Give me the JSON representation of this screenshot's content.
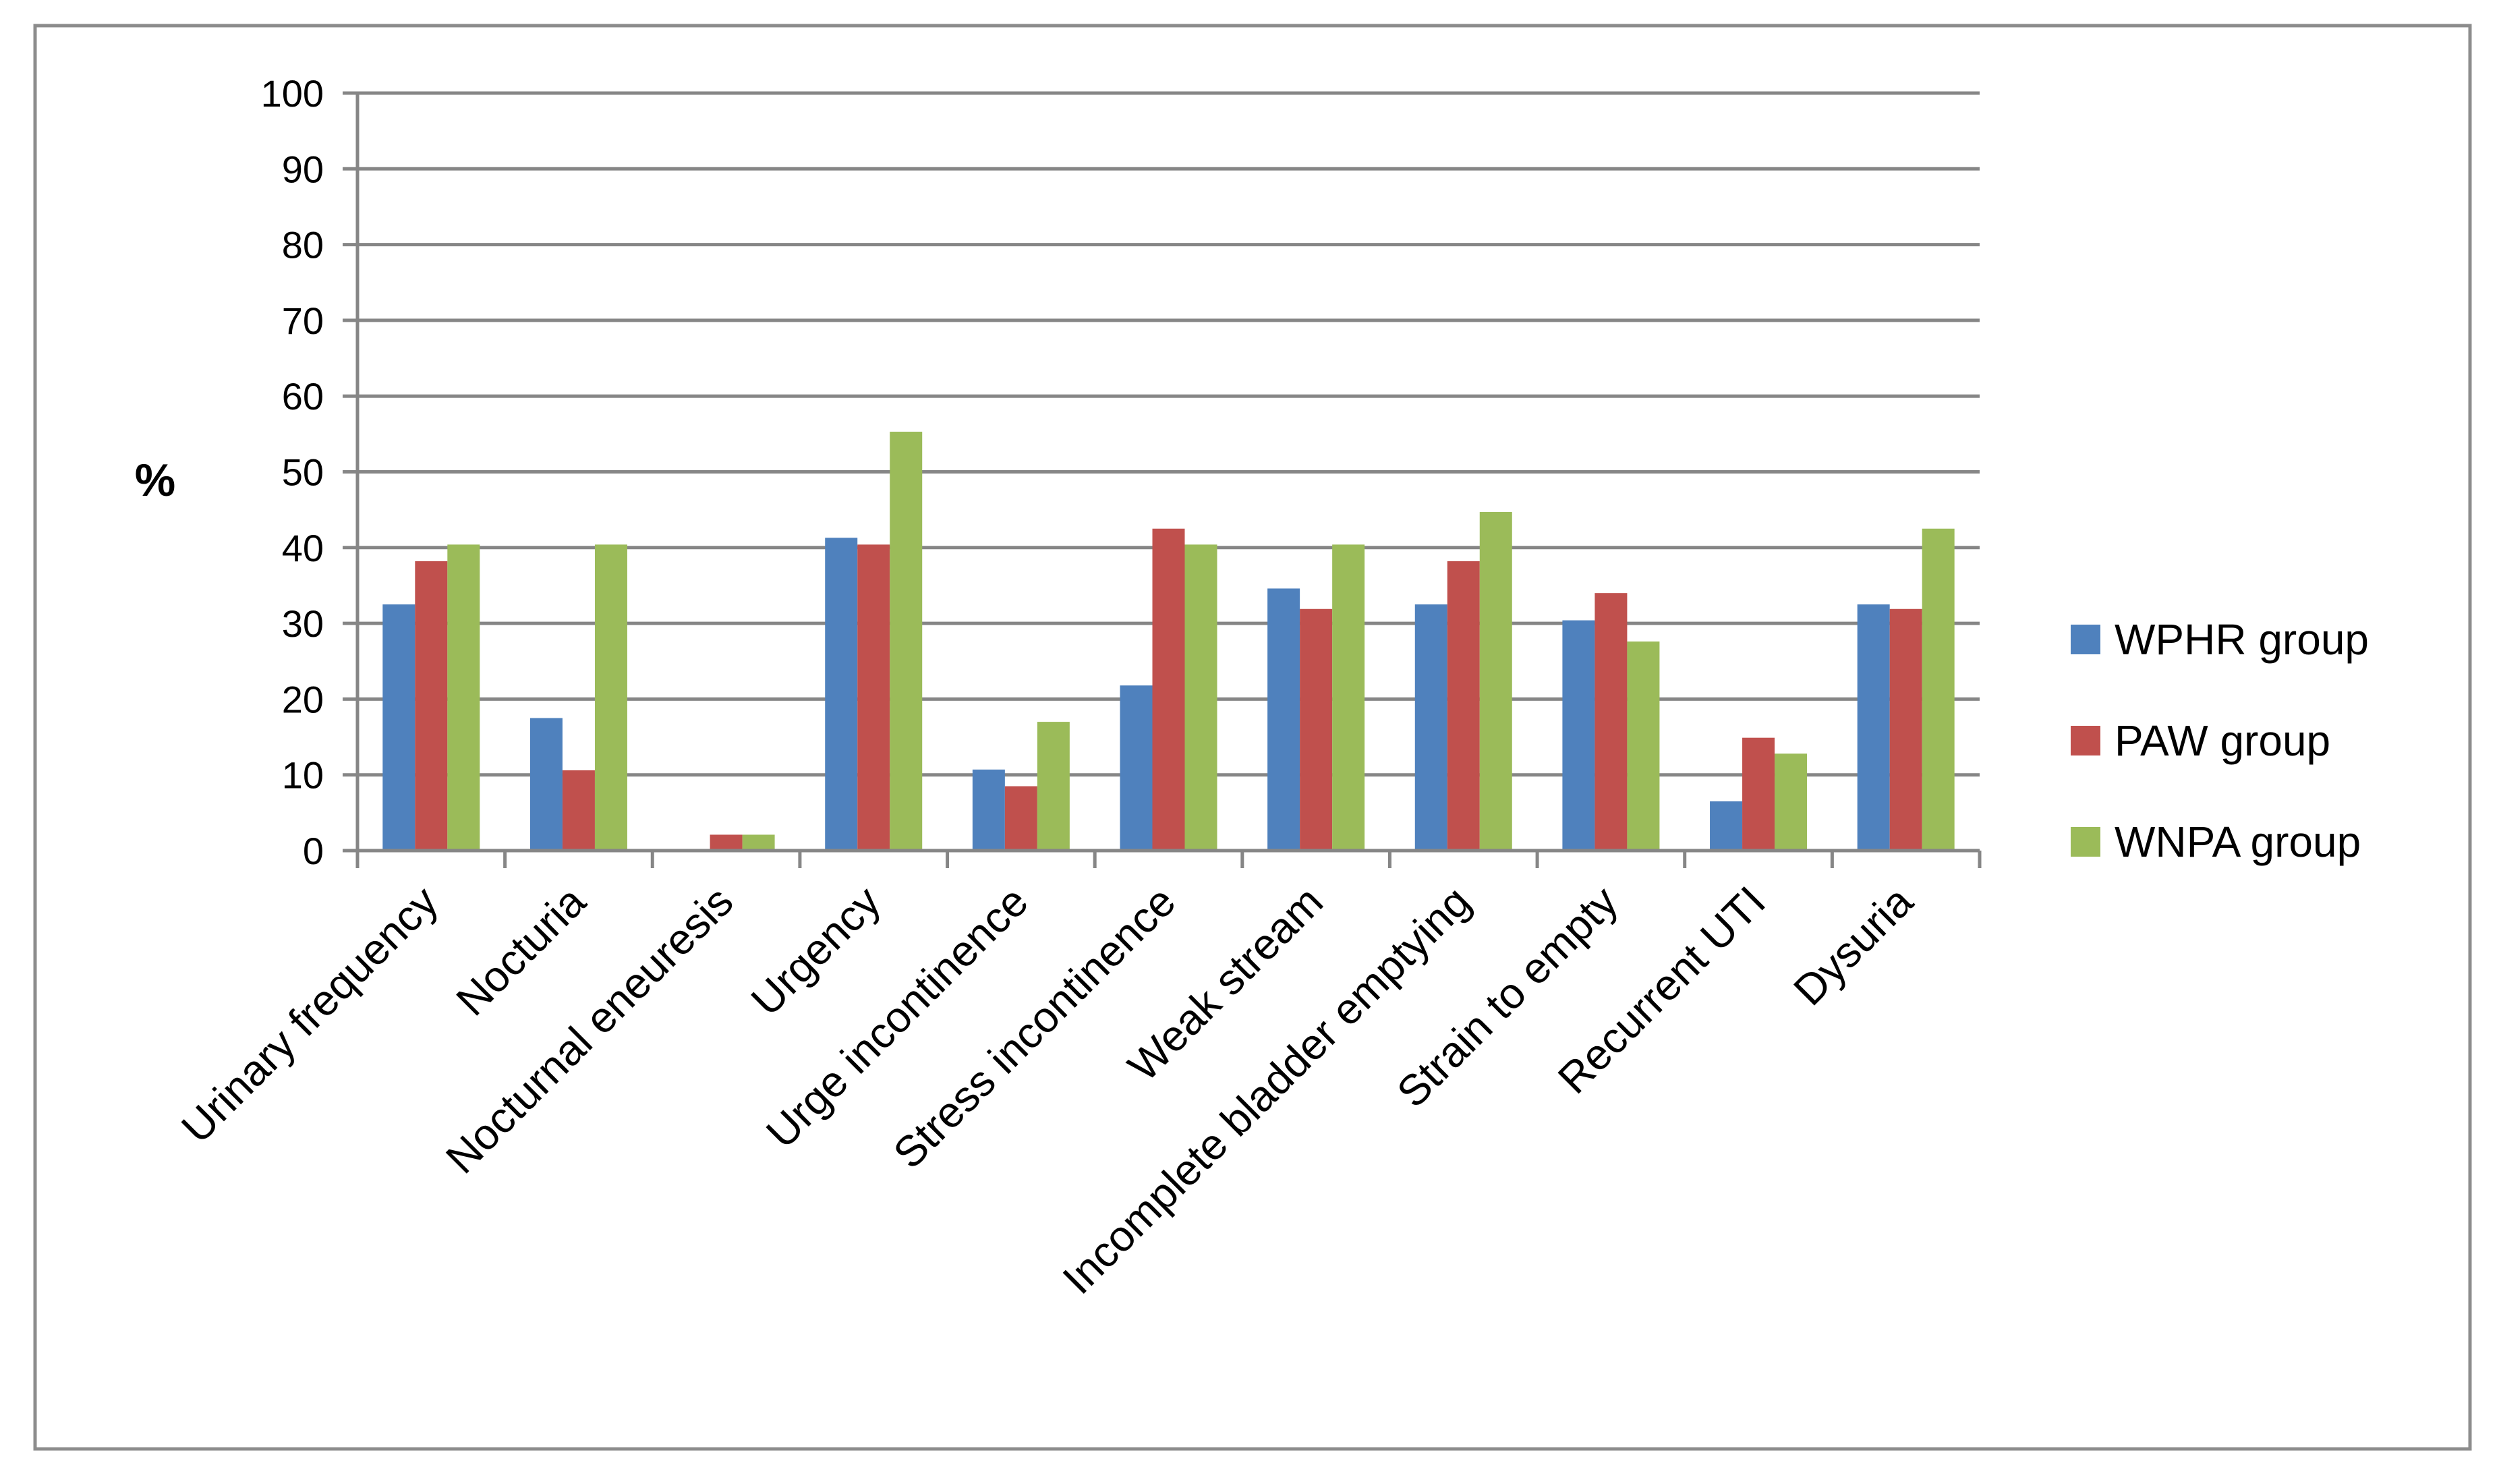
{
  "chart_data": {
    "type": "bar",
    "title": "",
    "xlabel": "",
    "ylabel": "%",
    "ylim": [
      0,
      100
    ],
    "yticks": [
      0,
      10,
      20,
      30,
      40,
      50,
      60,
      70,
      80,
      90,
      100
    ],
    "grid": true,
    "legend_position": "right",
    "categories": [
      "Urinary frequency",
      "Nocturia",
      "Nocturnal eneuresis",
      "Urgency",
      "Urge incontinence",
      "Stress incontinence",
      "Weak stream",
      "Incomplete bladder emptying",
      "Strain to empty",
      "Recurrent UTI",
      "Dysuria"
    ],
    "series": [
      {
        "name": "WPHR group",
        "color": "#4F81BD",
        "values": [
          32.5,
          17.5,
          0,
          41.3,
          10.7,
          21.8,
          34.6,
          32.5,
          30.4,
          6.5,
          32.5
        ]
      },
      {
        "name": "PAW group",
        "color": "#C0504D",
        "values": [
          38.2,
          10.6,
          2.1,
          40.4,
          8.5,
          42.5,
          31.9,
          38.2,
          34.0,
          14.9,
          31.9
        ]
      },
      {
        "name": "WNPA group",
        "color": "#9BBB59",
        "values": [
          40.4,
          40.4,
          2.1,
          55.3,
          17.0,
          40.4,
          40.4,
          44.7,
          27.6,
          12.8,
          42.5
        ]
      }
    ]
  }
}
